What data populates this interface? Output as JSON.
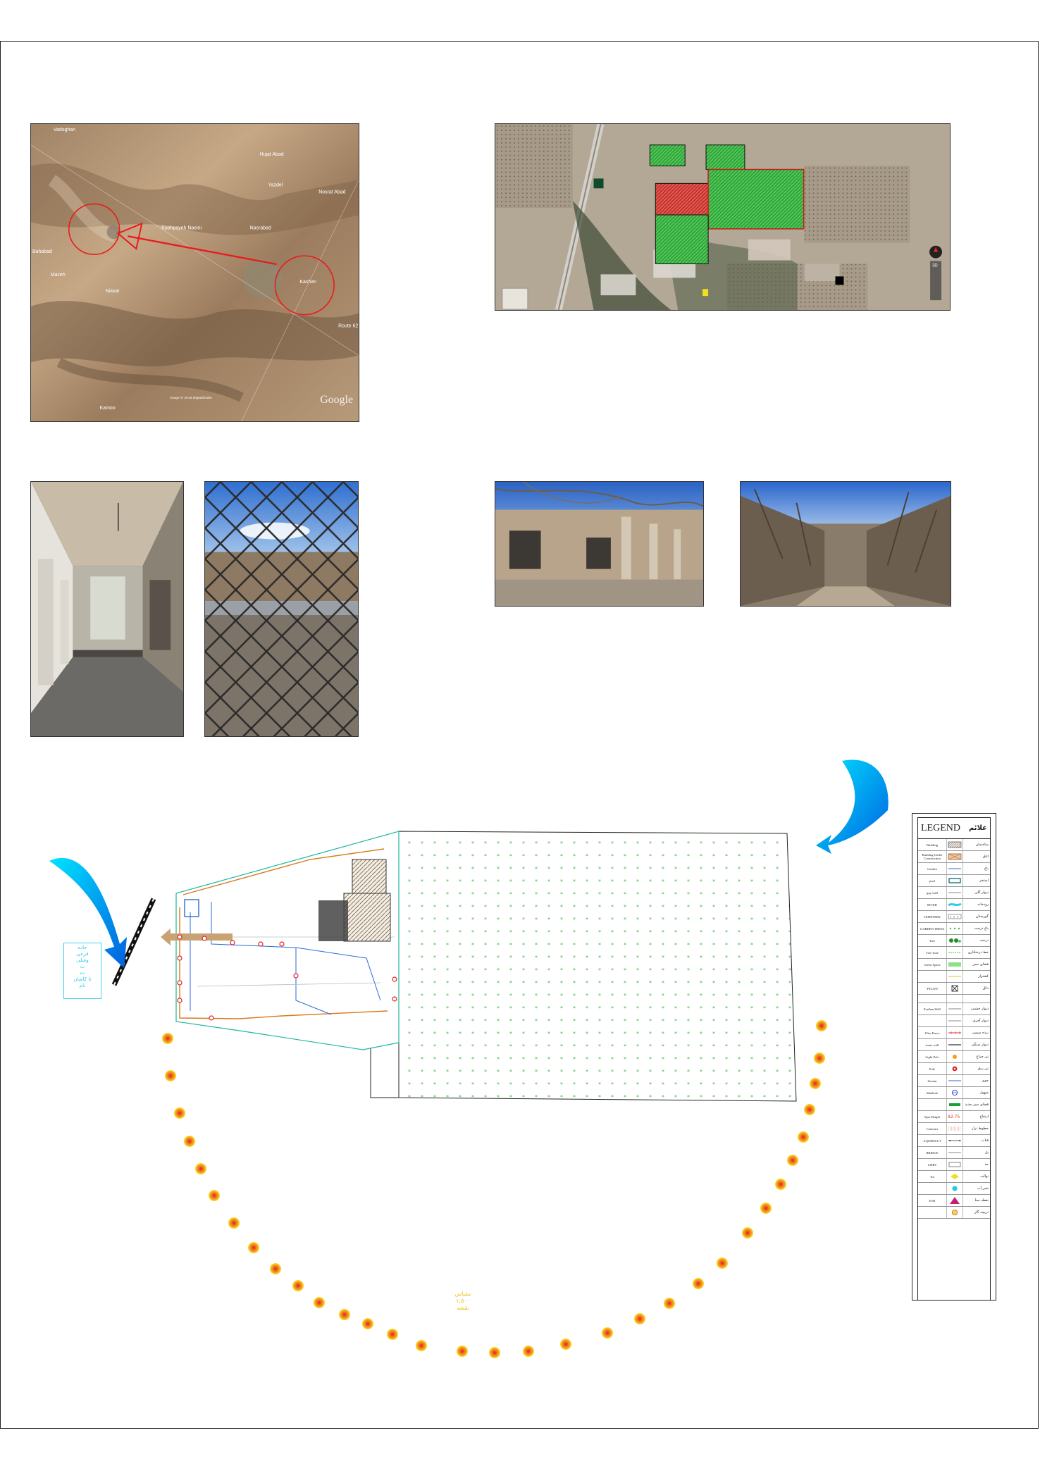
{
  "sheet": {
    "title": ""
  },
  "location_map": {
    "places": [
      {
        "name": "Vadoghan"
      },
      {
        "name": "Hujat Abad"
      },
      {
        "name": "Yazdel"
      },
      {
        "name": "Nosrat Abad"
      },
      {
        "name": "Koohpayeh Naeini"
      },
      {
        "name": "Nasrabad"
      },
      {
        "name": "Bahabad"
      },
      {
        "name": "Kashan"
      },
      {
        "name": "Niasar"
      },
      {
        "name": "Mazeh"
      },
      {
        "name": "Kamoo"
      },
      {
        "name": "Route 62"
      }
    ],
    "watermark": "Google",
    "imagery_credit": "Image © 2016 DigitalGlobe"
  },
  "site_map": {
    "compass_label": "3D"
  },
  "legend": {
    "title_en": "LEGEND",
    "title_fa": "علائم",
    "rows": [
      {
        "en": "Building",
        "fa": "ساختمان",
        "sym": "hatch"
      },
      {
        "en": "Building Under Construction",
        "fa": "اتاق",
        "sym": "crosshatch"
      },
      {
        "en": "Garden",
        "fa": "باغ",
        "sym": "line-blue"
      },
      {
        "en": "pool",
        "fa": "استخر",
        "sym": "pool"
      },
      {
        "en": "guy wall",
        "fa": "دیوار گلی",
        "sym": "line-gray"
      },
      {
        "en": "RIVER",
        "fa": "رودخانه",
        "sym": "river"
      },
      {
        "en": "CEMETERY",
        "fa": "گورستان",
        "sym": "cemetery"
      },
      {
        "en": "GARDEN TREES",
        "fa": "باغ درخت",
        "sym": "garden"
      },
      {
        "en": "Tree",
        "fa": "درخت",
        "sym": "trees"
      },
      {
        "en": "Tree Line",
        "fa": "خط درختکاری",
        "sym": "line-green"
      },
      {
        "en": "Green Space",
        "fa": "فضای سبز",
        "sym": "green"
      },
      {
        "en": "",
        "fa": "کشتزار",
        "sym": "line-yellow"
      },
      {
        "en": "PYLON",
        "fa": "دکل",
        "sym": "pylon"
      },
      {
        "en": "",
        "fa": "",
        "sym": "blank"
      },
      {
        "en": "Earthen Wall",
        "fa": "دیوار خشتی",
        "sym": "line-gray"
      },
      {
        "en": "",
        "fa": "دیوار آجری",
        "sym": "line-gray"
      },
      {
        "en": "Wire Fence",
        "fa": "نرده سیمی",
        "sym": "line-red"
      },
      {
        "en": "stone wall",
        "fa": "دیوار سنگی",
        "sym": "line-dark"
      },
      {
        "en": "Light Pole",
        "fa": "تیر چراغ",
        "sym": "light"
      },
      {
        "en": "Pole",
        "fa": "تیر برق",
        "sym": "pole"
      },
      {
        "en": "Stream",
        "fa": "جوی",
        "sym": "line-blue"
      },
      {
        "en": "Manhole",
        "fa": "منهول",
        "sym": "manhole"
      },
      {
        "en": "",
        "fa": "فضای سبز جدید",
        "sym": "bar-green"
      },
      {
        "en": "Spot Height",
        "fa": "ارتفاع",
        "sym": "spot"
      },
      {
        "en": "Contours",
        "fa": "خطوط تراز",
        "sym": "contours"
      },
      {
        "en": "AQUEDUCT",
        "fa": "قنات",
        "sym": "aqueduct"
      },
      {
        "en": "BRIDGE",
        "fa": "پل",
        "sym": "line-gray"
      },
      {
        "en": "LIMIT",
        "fa": "حد",
        "sym": "limit"
      },
      {
        "en": "Toi",
        "fa": "توالت",
        "sym": "toilet"
      },
      {
        "en": "",
        "fa": "شیر آب",
        "sym": "tap"
      },
      {
        "en": "B M",
        "fa": "نقطه مبنا",
        "sym": "bm"
      },
      {
        "en": "",
        "fa": "دریچه گاز",
        "sym": "gas"
      }
    ],
    "spot_height_value": "92.75"
  },
  "plan": {
    "north_note": [
      "جاده",
      "فرعی",
      "وشلی",
      "ب",
      "ده",
      "تا کاشان",
      "نام"
    ],
    "scale_note": [
      "مقیاس",
      "۱:۵۰۰",
      "نقشه"
    ]
  }
}
